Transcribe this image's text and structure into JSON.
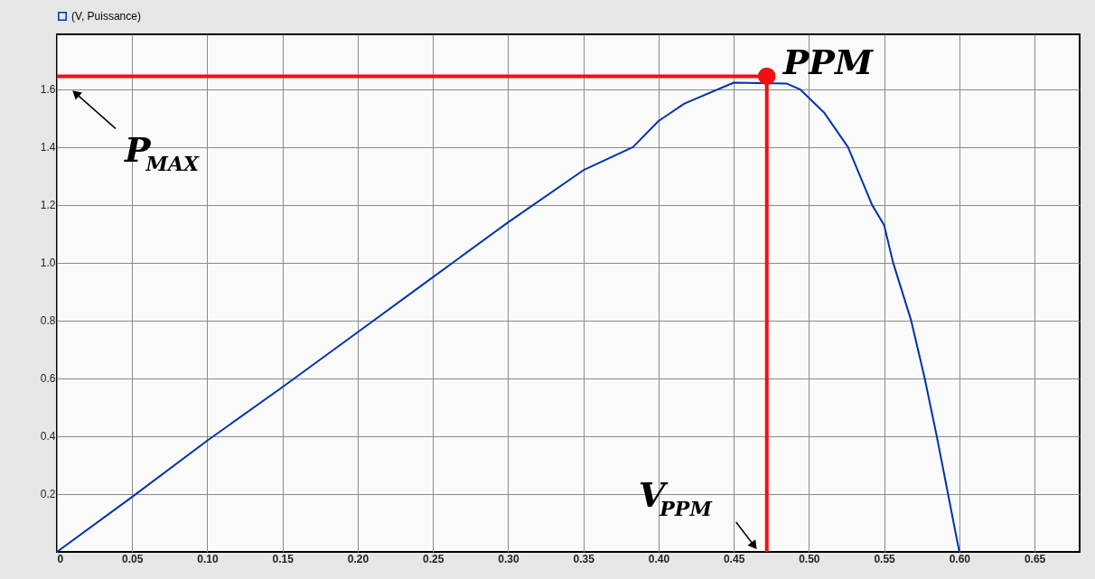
{
  "chart_data": {
    "type": "line",
    "x": [
      0,
      0.05,
      0.1,
      0.15,
      0.2,
      0.25,
      0.3,
      0.35,
      0.383,
      0.4,
      0.417,
      0.45,
      0.485,
      0.494,
      0.51,
      0.526,
      0.542,
      0.55,
      0.556,
      0.568,
      0.577,
      0.585,
      0.5925,
      0.6
    ],
    "series": [
      {
        "name": "(V, Puissance)",
        "color": "#0033aa",
        "values": [
          0,
          0.19,
          0.385,
          0.57,
          0.76,
          0.95,
          1.14,
          1.32,
          1.4,
          1.49,
          1.55,
          1.623,
          1.62,
          1.6,
          1.52,
          1.4,
          1.2,
          1.13,
          1.0,
          0.8,
          0.6,
          0.4,
          0.2,
          0.0
        ]
      },
      {
        "type": "scatter",
        "color": "#ee1111",
        "x": [
          0.472
        ],
        "values": [
          1.645
        ]
      }
    ],
    "annotations": [
      {
        "text": "PPM",
        "x": 0.472,
        "y": 1.645
      }
    ],
    "ref_lines": [
      {
        "axis": "y",
        "value": 1.645,
        "label": "P$_{MAX}$",
        "color": "#ee1111"
      },
      {
        "axis": "x",
        "value": 0.472,
        "label": "V$_{PPM}$",
        "color": "#ee1111"
      }
    ],
    "xlim": [
      0,
      0.68
    ],
    "ylim": [
      0,
      1.79
    ],
    "xticks": [
      0,
      0.05,
      {
        "value": 0.1,
        "label": "0.10"
      },
      0.15,
      {
        "value": 0.2,
        "label": "0.20"
      },
      0.25,
      {
        "value": 0.3,
        "label": "0.30"
      },
      0.35,
      {
        "value": 0.4,
        "label": "0.40"
      },
      0.45,
      {
        "value": 0.5,
        "label": "0.50"
      },
      0.55,
      {
        "value": 0.6,
        "label": "0.60"
      },
      0.65
    ],
    "yticks": [
      0.2,
      0.4,
      0.6,
      0.8,
      {
        "value": 1.0,
        "label": "1.0"
      },
      1.2,
      1.4,
      1.6
    ],
    "grid": true,
    "legend": "top left",
    "line_style": "solid"
  }
}
